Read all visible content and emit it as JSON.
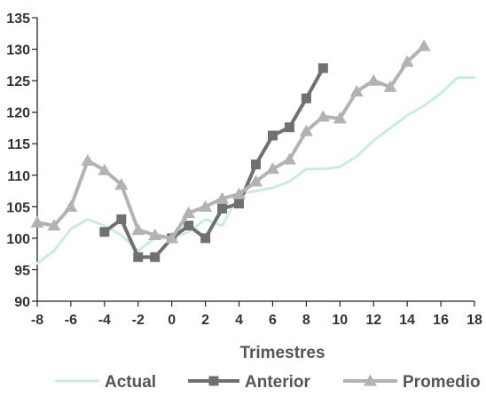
{
  "chart_data": {
    "type": "line",
    "title": "",
    "xlabel": "Trimestres",
    "ylabel": "",
    "xlim": [
      -8,
      18
    ],
    "ylim": [
      90,
      135
    ],
    "x_ticks": [
      -8,
      -6,
      -4,
      -2,
      0,
      2,
      4,
      6,
      8,
      10,
      12,
      14,
      16,
      18
    ],
    "y_ticks": [
      90,
      95,
      100,
      105,
      110,
      115,
      120,
      125,
      130,
      135
    ],
    "grid": false,
    "legend_position": "bottom",
    "series": [
      {
        "name": "Actual",
        "color": "#c8ece3",
        "marker": "none",
        "x": [
          -8,
          -7,
          -6,
          -5,
          -4,
          -3,
          -2,
          -1,
          0,
          1,
          2,
          3,
          4,
          5,
          6,
          7,
          8,
          9,
          10,
          11,
          12,
          13,
          14,
          15,
          16,
          17,
          18
        ],
        "y": [
          96,
          98,
          101.5,
          103,
          102,
          100.5,
          98,
          100,
          100,
          101,
          103,
          102,
          107,
          107.5,
          108,
          109,
          111,
          111,
          111.3,
          113,
          115.5,
          117.5,
          119.5,
          121,
          123,
          125.5,
          125.5
        ]
      },
      {
        "name": "Anterior",
        "color": "#707070",
        "marker": "square",
        "x": [
          -4,
          -3,
          -2,
          -1,
          0,
          1,
          2,
          3,
          4,
          5,
          6,
          7,
          8,
          9
        ],
        "y": [
          101,
          103,
          97,
          97,
          100,
          102,
          100,
          104.7,
          105.5,
          111.7,
          116.3,
          117.6,
          122.2,
          127
        ]
      },
      {
        "name": "Promedio",
        "color": "#b3b3b3",
        "marker": "triangle",
        "x": [
          -8,
          -7,
          -6,
          -5,
          -4,
          -3,
          -2,
          -1,
          0,
          1,
          2,
          3,
          4,
          5,
          6,
          7,
          8,
          9,
          10,
          11,
          12,
          13,
          14,
          15
        ],
        "y": [
          102.5,
          102,
          105,
          112.3,
          110.8,
          108.5,
          101.3,
          100.5,
          100,
          104,
          105,
          106.3,
          107,
          109,
          111,
          112.5,
          117,
          119.3,
          119,
          123.3,
          125,
          124,
          128,
          130.5
        ]
      }
    ]
  }
}
